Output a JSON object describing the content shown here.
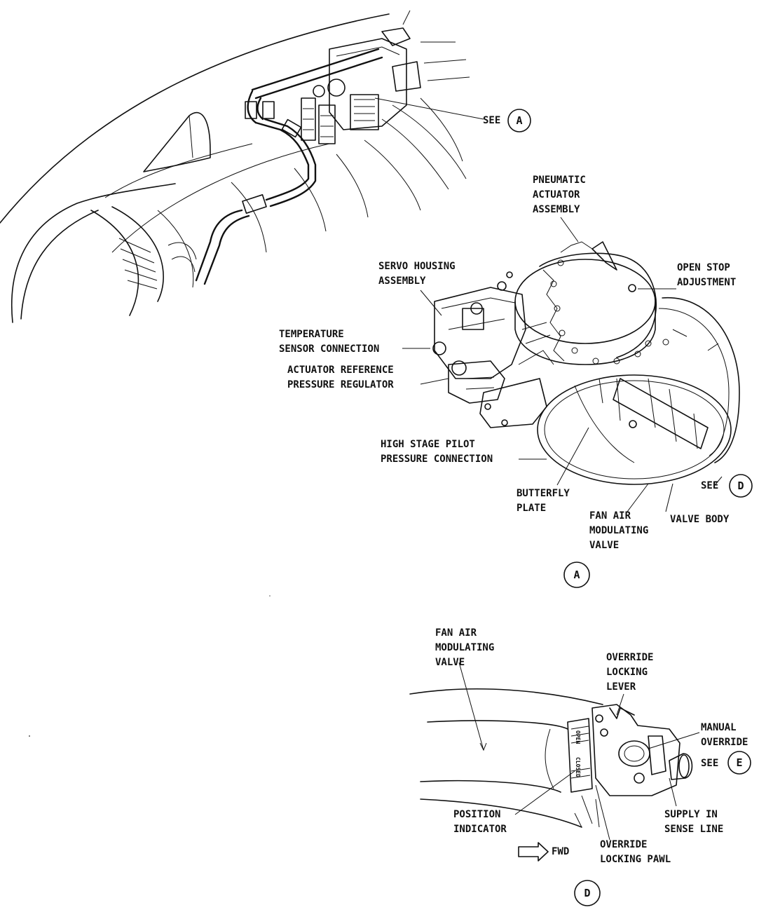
{
  "diagram": {
    "callouts": {
      "see_a_top": {
        "see": "SEE",
        "ref": "A"
      },
      "see_d": {
        "see": "SEE",
        "ref": "D"
      },
      "see_e": {
        "see": "SEE",
        "ref": "E"
      }
    },
    "detail_a": {
      "view_label": "A",
      "labels": {
        "pneumatic_actuator": [
          "PNEUMATIC",
          "ACTUATOR",
          "ASSEMBLY"
        ],
        "open_stop": [
          "OPEN STOP",
          "ADJUSTMENT"
        ],
        "servo_housing": [
          "SERVO HOUSING",
          "ASSEMBLY"
        ],
        "temperature_sensor": [
          "TEMPERATURE",
          "SENSOR CONNECTION"
        ],
        "actuator_reference": [
          "ACTUATOR REFERENCE",
          "PRESSURE REGULATOR"
        ],
        "high_stage_pilot": [
          "HIGH STAGE PILOT",
          "PRESSURE CONNECTION"
        ],
        "butterfly_plate": [
          "BUTTERFLY",
          "PLATE"
        ],
        "fan_air_valve": [
          "FAN AIR",
          "MODULATING",
          "VALVE"
        ],
        "valve_body": [
          "VALVE BODY"
        ]
      }
    },
    "detail_d": {
      "view_label": "D",
      "labels": {
        "fan_air_valve": [
          "FAN AIR",
          "MODULATING",
          "VALVE"
        ],
        "override_locking_lever": [
          "OVERRIDE",
          "LOCKING",
          "LEVER"
        ],
        "manual_override": [
          "MANUAL",
          "OVERRIDE"
        ],
        "position_indicator": [
          "POSITION",
          "INDICATOR"
        ],
        "supply_in_sense": [
          "SUPPLY IN",
          "SENSE LINE"
        ],
        "override_locking_pawl": [
          "OVERRIDE",
          "LOCKING PAWL"
        ],
        "fwd": "FWD",
        "indicator_open": "OPEN",
        "indicator_closed": "CLOSED"
      }
    }
  }
}
